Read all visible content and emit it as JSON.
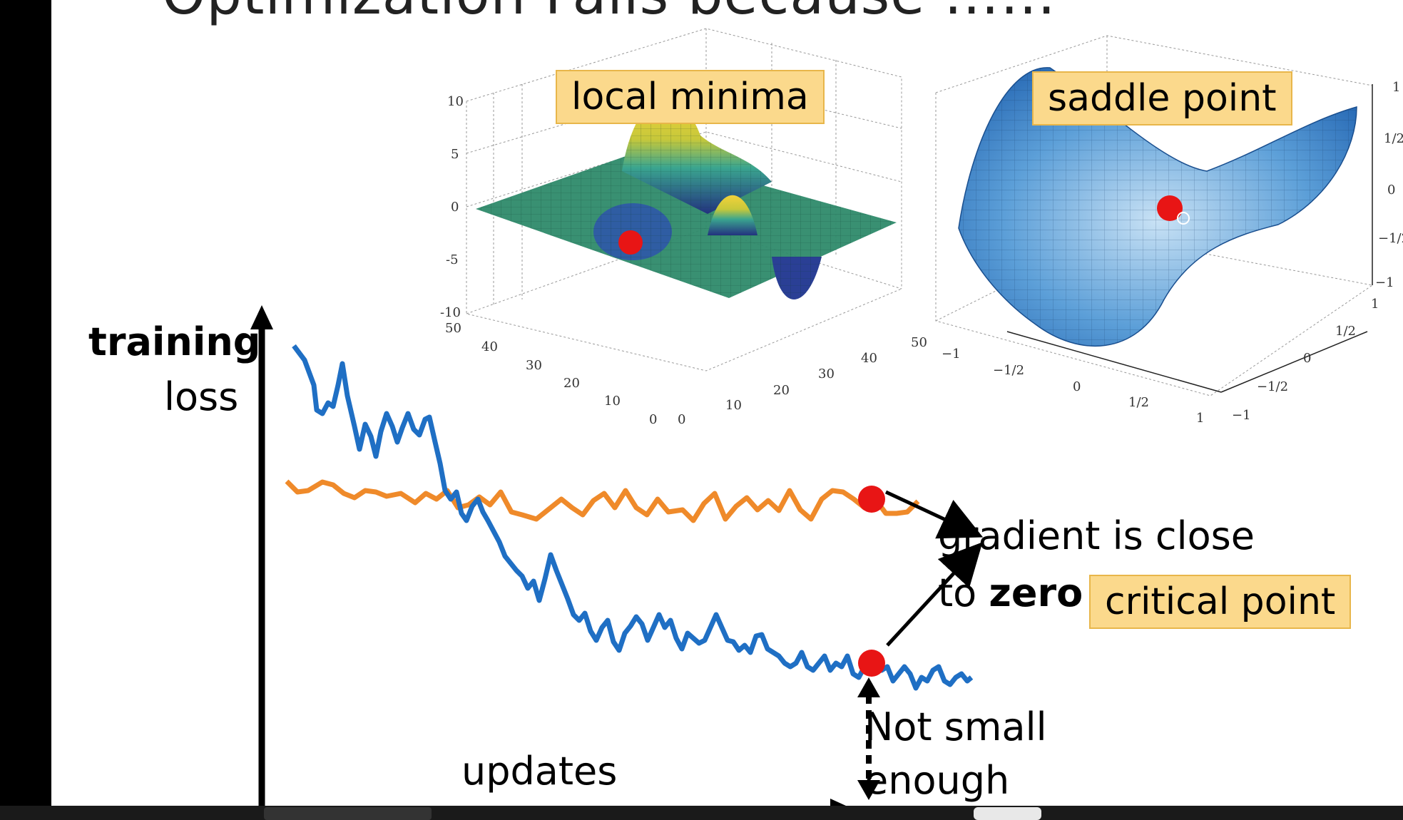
{
  "slide": {
    "title": "Optimization Fails because ……",
    "local_minima_label": "local minima",
    "saddle_point_label": "saddle point",
    "critical_point_label": "critical point",
    "ylabel_line1": "training",
    "ylabel_line2": "loss",
    "xlabel": "updates",
    "gradient_line1": "gradient is close",
    "gradient_line2_prefix": "to",
    "gradient_line2_bold": "zero",
    "not_small_line1": "Not small",
    "not_small_line2": "enough"
  },
  "local_minima_plot": {
    "z_ticks": [
      "10",
      "5",
      "0",
      "-5",
      "-10"
    ],
    "y_ticks": [
      "50",
      "40",
      "30",
      "20",
      "10",
      "0"
    ],
    "x_ticks": [
      "0",
      "10",
      "20",
      "30",
      "40",
      "50"
    ]
  },
  "saddle_plot": {
    "z_ticks": [
      "1",
      "1/2",
      "0",
      "−1/2",
      "−1"
    ],
    "x_ticks": [
      "−1",
      "−1/2",
      "0",
      "1/2",
      "1"
    ],
    "y_ticks": [
      "1",
      "1/2",
      "0",
      "−1/2",
      "−1"
    ]
  },
  "colors": {
    "blue_curve": "#1f6fc4",
    "orange_curve": "#ef8a2a",
    "marker": "#e81515",
    "label_fill": "#fbd98c"
  }
}
